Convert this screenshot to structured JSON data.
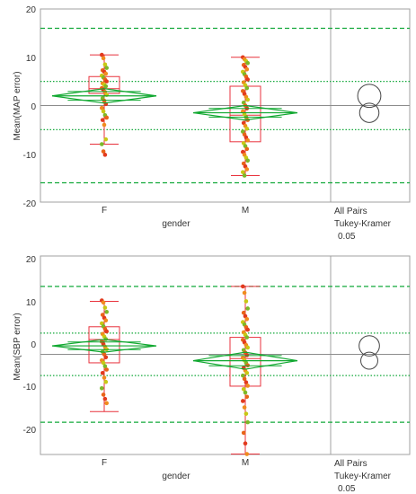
{
  "colors": {
    "frame": "#a0a0a0",
    "mean_line": "#8c8c8c",
    "diamond": "#11a830",
    "ref_dash": "#12a83a",
    "box": "#e8323c",
    "whisker": "#e8323c",
    "circle": "#444444",
    "point_colors": [
      "#e23a1e",
      "#f08c1e",
      "#c8c814",
      "#7cb828",
      "#e86418"
    ]
  },
  "charts": [
    {
      "ylabel": "Mean(MAP error)",
      "xlabel": "gender",
      "yticks": [
        "20",
        "10",
        "0",
        "-10",
        "-20"
      ],
      "categories": [
        "F",
        "M"
      ],
      "compare": {
        "line1": "All Pairs",
        "line2": "Tukey-Kramer",
        "line3": "0.05"
      }
    },
    {
      "ylabel": "Mean(SBP error)",
      "xlabel": "gender",
      "yticks": [
        "20",
        "10",
        "0",
        "-10",
        "-20"
      ],
      "categories": [
        "F",
        "M"
      ],
      "compare": {
        "line1": "All Pairs",
        "line2": "Tukey-Kramer",
        "line3": "0.05"
      }
    }
  ],
  "chart_data": [
    {
      "type": "box",
      "ylabel": "Mean(MAP error)",
      "xlabel": "gender",
      "categories": [
        "F",
        "M"
      ],
      "ylim": [
        -20,
        20
      ],
      "grand_mean": 0,
      "reference_lines": {
        "dashed": [
          16,
          -16
        ],
        "dotted": [
          5,
          -5
        ]
      },
      "groups": [
        {
          "category": "F",
          "min": -8,
          "q1": 2.5,
          "median": 3.5,
          "q3": 6,
          "max": 10.5,
          "mean": 2,
          "diamond_low": 0.5,
          "diamond_high": 3.5,
          "points": [
            10.5,
            9.8,
            8.5,
            7.8,
            7.3,
            7,
            6.6,
            6.2,
            5.8,
            5.4,
            5,
            4.6,
            4.3,
            4,
            3.6,
            3.2,
            2.8,
            2.2,
            1.5,
            1,
            0.3,
            -0.5,
            -1.2,
            -2,
            -2.5,
            -3,
            -4,
            -7,
            -8,
            -9.5,
            -10.2
          ]
        },
        {
          "category": "M",
          "min": -14.5,
          "q1": -7.5,
          "median": -2,
          "q3": 4,
          "max": 10,
          "mean": -1.5,
          "diamond_low": -3,
          "diamond_high": 0,
          "points": [
            10,
            9.6,
            9.2,
            8.8,
            8.4,
            8,
            7.5,
            7,
            6.5,
            6,
            5.4,
            4.8,
            4.2,
            3.6,
            3,
            2.4,
            1.8,
            1.2,
            0.6,
            0,
            -0.6,
            -1.2,
            -1.8,
            -2.4,
            -3,
            -3.6,
            -4.2,
            -4.8,
            -5.4,
            -6,
            -6.6,
            -7.2,
            -7.8,
            -8.4,
            -9,
            -9.6,
            -10.2,
            -10.8,
            -11.4,
            -12,
            -12.6,
            -13.2,
            -13.8,
            -14.5
          ]
        }
      ],
      "comparison_circles": [
        {
          "center": 2,
          "radius": 2.4
        },
        {
          "center": -1.5,
          "radius": 2
        }
      ]
    },
    {
      "type": "box",
      "ylabel": "Mean(SBP error)",
      "xlabel": "gender",
      "categories": [
        "F",
        "M"
      ],
      "ylim": [
        -25,
        20
      ],
      "grand_mean": 0,
      "reference_lines": {
        "dashed": [
          16,
          -16
        ],
        "dotted": [
          5,
          -5
        ]
      },
      "groups": [
        {
          "category": "F",
          "min": -13.5,
          "q1": -2,
          "median": 3.5,
          "q3": 6.5,
          "max": 12.5,
          "mean": 2,
          "diamond_low": 0.5,
          "diamond_high": 3.5,
          "points": [
            12.7,
            12.2,
            11,
            10,
            9.3,
            8.6,
            8,
            7.3,
            6.6,
            6,
            5.4,
            4.8,
            4.2,
            3.6,
            3,
            2.4,
            1.8,
            1.2,
            0.6,
            0,
            -0.7,
            -1.4,
            -2,
            -2.8,
            -3.6,
            -4.4,
            -5.5,
            -6.5,
            -8,
            -9.5,
            -10.5,
            -11.5
          ]
        },
        {
          "category": "M",
          "min": -23.5,
          "q1": -7.5,
          "median": -1,
          "q3": 4,
          "max": 16,
          "mean": -1.5,
          "diamond_low": -3.5,
          "diamond_high": 0.5,
          "points": [
            16,
            14.5,
            12.5,
            10.8,
            9.8,
            9,
            8.3,
            7.6,
            7,
            6.4,
            5.8,
            5.2,
            4.6,
            4,
            3.4,
            2.8,
            2.2,
            1.6,
            1,
            0.4,
            -0.2,
            -0.8,
            -1.4,
            -2,
            -2.6,
            -3.2,
            -3.8,
            -4.4,
            -5,
            -5.8,
            -6.6,
            -7.4,
            -8.2,
            -9,
            -10,
            -11,
            -12.5,
            -14,
            -16,
            -18.5,
            -21,
            -23.5
          ]
        }
      ],
      "comparison_circles": [
        {
          "center": 2,
          "radius": 2.4
        },
        {
          "center": -1.5,
          "radius": 2
        }
      ]
    }
  ]
}
